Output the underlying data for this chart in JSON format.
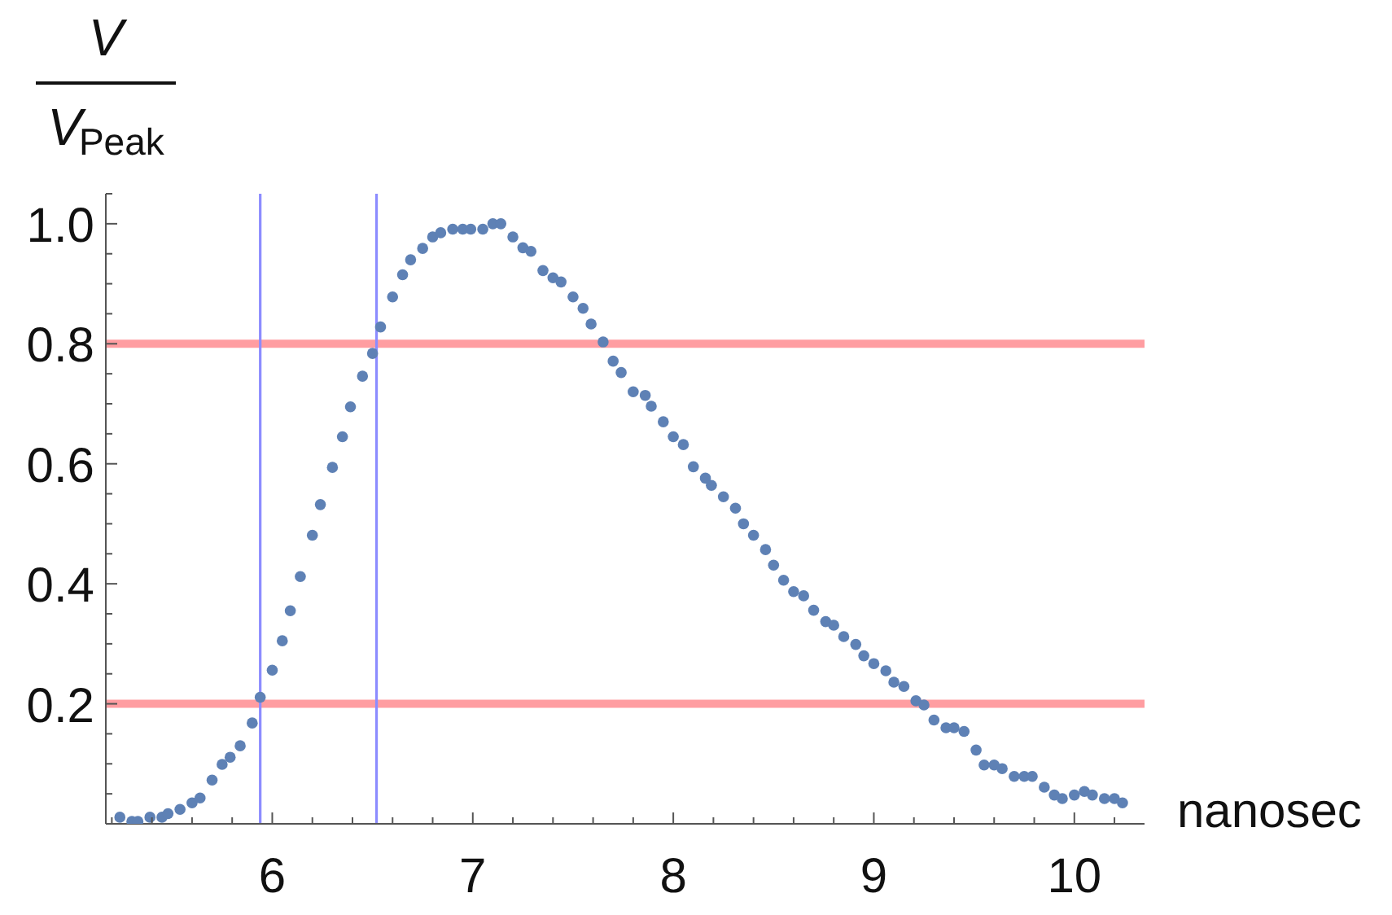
{
  "chart_data": {
    "type": "scatter",
    "xlabel": "nanosec",
    "ylabel": "V V$_{Peak}$",
    "color": "#5e81b5",
    "marker": "circle",
    "x": [
      5.24,
      5.3,
      5.33,
      5.39,
      5.45,
      5.48,
      5.54,
      5.6,
      5.64,
      5.7,
      5.75,
      5.79,
      5.84,
      5.9,
      5.94,
      6.0,
      6.05,
      6.09,
      6.14,
      6.2,
      6.24,
      6.3,
      6.35,
      6.39,
      6.45,
      6.5,
      6.54,
      6.6,
      6.65,
      6.69,
      6.75,
      6.8,
      6.84,
      6.9,
      6.95,
      6.99,
      7.05,
      7.1,
      7.14,
      7.2,
      7.25,
      7.29,
      7.35,
      7.4,
      7.44,
      7.5,
      7.55,
      7.59,
      7.65,
      7.7,
      7.74,
      7.8,
      7.86,
      7.89,
      7.95,
      8.0,
      8.05,
      8.1,
      8.16,
      8.19,
      8.25,
      8.31,
      8.35,
      8.4,
      8.46,
      8.5,
      8.55,
      8.6,
      8.65,
      8.7,
      8.76,
      8.8,
      8.85,
      8.91,
      8.95,
      9.0,
      9.06,
      9.1,
      9.15,
      9.21,
      9.25,
      9.3,
      9.36,
      9.4,
      9.45,
      9.51,
      9.55,
      9.6,
      9.64,
      9.7,
      9.75,
      9.79,
      9.85,
      9.9,
      9.94,
      10.0,
      10.05,
      10.09,
      10.15,
      10.2,
      10.24
    ],
    "values": [
      0.011,
      0.004,
      0.004,
      0.011,
      0.011,
      0.017,
      0.024,
      0.035,
      0.043,
      0.073,
      0.099,
      0.111,
      0.13,
      0.168,
      0.211,
      0.256,
      0.305,
      0.355,
      0.412,
      0.481,
      0.532,
      0.594,
      0.645,
      0.695,
      0.746,
      0.784,
      0.828,
      0.878,
      0.915,
      0.94,
      0.959,
      0.978,
      0.985,
      0.991,
      0.991,
      0.991,
      0.991,
      1,
      1,
      0.978,
      0.96,
      0.954,
      0.922,
      0.91,
      0.903,
      0.878,
      0.859,
      0.833,
      0.803,
      0.771,
      0.752,
      0.72,
      0.714,
      0.696,
      0.67,
      0.645,
      0.632,
      0.595,
      0.576,
      0.564,
      0.545,
      0.526,
      0.5,
      0.481,
      0.457,
      0.431,
      0.406,
      0.387,
      0.38,
      0.356,
      0.337,
      0.331,
      0.312,
      0.299,
      0.28,
      0.267,
      0.255,
      0.236,
      0.229,
      0.205,
      0.198,
      0.173,
      0.16,
      0.16,
      0.154,
      0.123,
      0.098,
      0.098,
      0.092,
      0.079,
      0.079,
      0.079,
      0.061,
      0.048,
      0.042,
      0.048,
      0.054,
      0.048,
      0.042,
      0.042,
      0.035
    ],
    "xlim": [
      5.17,
      10.35
    ],
    "ylim": [
      0,
      1.05
    ],
    "xticks": [
      {
        "value": 5.2,
        "label": null
      },
      {
        "value": 5.4,
        "label": null
      },
      {
        "value": 5.6,
        "label": null
      },
      {
        "value": 5.8,
        "label": null
      },
      6,
      {
        "value": 6.2,
        "label": null
      },
      {
        "value": 6.4,
        "label": null
      },
      {
        "value": 6.6,
        "label": null
      },
      {
        "value": 6.8,
        "label": null
      },
      7,
      {
        "value": 7.2,
        "label": null
      },
      {
        "value": 7.4,
        "label": null
      },
      {
        "value": 7.6,
        "label": null
      },
      {
        "value": 7.8,
        "label": null
      },
      8,
      {
        "value": 8.2,
        "label": null
      },
      {
        "value": 8.4,
        "label": null
      },
      {
        "value": 8.6,
        "label": null
      },
      {
        "value": 8.8,
        "label": null
      },
      9,
      {
        "value": 9.2,
        "label": null
      },
      {
        "value": 9.4,
        "label": null
      },
      {
        "value": 9.6,
        "label": null
      },
      {
        "value": 9.8,
        "label": null
      },
      10,
      {
        "value": 10.2,
        "label": null
      }
    ],
    "yticks": [
      {
        "value": 0.05,
        "label": null
      },
      {
        "value": 0.1,
        "label": null
      },
      {
        "value": 0.15,
        "label": null
      },
      0.2,
      {
        "value": 0.25,
        "label": null
      },
      {
        "value": 0.3,
        "label": null
      },
      {
        "value": 0.35,
        "label": null
      },
      0.4,
      {
        "value": 0.45,
        "label": null
      },
      {
        "value": 0.5,
        "label": null
      },
      {
        "value": 0.55,
        "label": null
      },
      0.6,
      {
        "value": 0.65,
        "label": null
      },
      {
        "value": 0.7,
        "label": null
      },
      {
        "value": 0.75,
        "label": null
      },
      0.8,
      {
        "value": 0.85,
        "label": null
      },
      {
        "value": 0.9,
        "label": null
      },
      {
        "value": 0.95,
        "label": null
      },
      {
        "value": 1,
        "label": "1.0"
      },
      {
        "value": 1.05,
        "label": null
      }
    ],
    "ref_lines": [
      {
        "axis": "y",
        "value": 0.8,
        "color": "#ff9da1"
      },
      {
        "axis": "y",
        "value": 0.2,
        "color": "#ff9da1"
      },
      {
        "axis": "x",
        "value": 5.94,
        "color": "#8c8cff"
      },
      {
        "axis": "x",
        "value": 6.52,
        "color": "#8c8cff"
      }
    ]
  }
}
